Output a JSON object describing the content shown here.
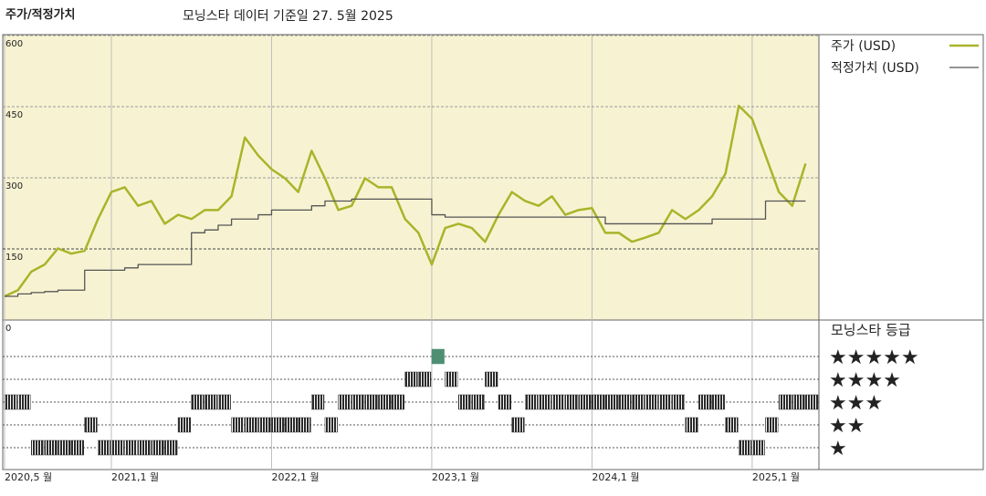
{
  "chart_data": [
    {
      "type": "line",
      "title": "주가/적정가치",
      "subtitle": "모닝스타 데이터 기준일 27. 5월 2025",
      "x": [
        "2020-05",
        "2020-06",
        "2020-07",
        "2020-08",
        "2020-09",
        "2020-10",
        "2020-11",
        "2020-12",
        "2021-01",
        "2021-02",
        "2021-03",
        "2021-04",
        "2021-05",
        "2021-06",
        "2021-07",
        "2021-08",
        "2021-09",
        "2021-10",
        "2021-11",
        "2021-12",
        "2022-01",
        "2022-02",
        "2022-03",
        "2022-04",
        "2022-05",
        "2022-06",
        "2022-07",
        "2022-08",
        "2022-09",
        "2022-10",
        "2022-11",
        "2022-12",
        "2023-01",
        "2023-02",
        "2023-03",
        "2023-04",
        "2023-05",
        "2023-06",
        "2023-07",
        "2023-08",
        "2023-09",
        "2023-10",
        "2023-11",
        "2023-12",
        "2024-01",
        "2024-02",
        "2024-03",
        "2024-04",
        "2024-05",
        "2024-06",
        "2024-07",
        "2024-08",
        "2024-09",
        "2024-10",
        "2024-11",
        "2024-12",
        "2025-01",
        "2025-02",
        "2025-03",
        "2025-04",
        "2025-05"
      ],
      "xlim": [
        "2020-05",
        "2025-06"
      ],
      "xticks": [
        {
          "value": "2020-05",
          "label": "2020,5 월"
        },
        {
          "value": "2021-01",
          "label": "2021,1 월"
        },
        {
          "value": "2022-01",
          "label": "2022,1 월"
        },
        {
          "value": "2023-01",
          "label": "2023,1 월"
        },
        {
          "value": "2024-01",
          "label": "2024,1 월"
        },
        {
          "value": "2025-01",
          "label": "2025,1 월"
        }
      ],
      "ylim": [
        0,
        600
      ],
      "yticks": [
        0,
        150,
        300,
        450,
        600
      ],
      "grid": true,
      "background": "#f7f3d2",
      "series": [
        {
          "name": "주가 (USD)",
          "color": "#a9b42a",
          "values": [
            50,
            63,
            102,
            117,
            151,
            140,
            146,
            213,
            270,
            280,
            241,
            251,
            203,
            222,
            213,
            232,
            232,
            261,
            385,
            347,
            318,
            299,
            270,
            357,
            299,
            232,
            241,
            299,
            280,
            280,
            213,
            184,
            117,
            194,
            203,
            194,
            165,
            222,
            270,
            251,
            241,
            261,
            222,
            232,
            236,
            184,
            184,
            165,
            174,
            184,
            232,
            213,
            232,
            261,
            309,
            452,
            424,
            347,
            270,
            241,
            330
          ]
        },
        {
          "name": "적정가치 (USD)",
          "color": "#555555",
          "step": true,
          "values": [
            50,
            55,
            58,
            60,
            63,
            63,
            105,
            105,
            105,
            110,
            117,
            117,
            117,
            117,
            184,
            190,
            200,
            213,
            213,
            222,
            232,
            232,
            232,
            241,
            251,
            251,
            255,
            255,
            255,
            255,
            255,
            255,
            222,
            217,
            217,
            217,
            217,
            217,
            217,
            217,
            217,
            217,
            217,
            217,
            217,
            203,
            203,
            203,
            203,
            203,
            203,
            203,
            203,
            213,
            213,
            213,
            213,
            251,
            251,
            251,
            251
          ]
        }
      ]
    },
    {
      "type": "rating",
      "title": "모닝스타 등급",
      "ylim": [
        1,
        5
      ],
      "yticks": [
        {
          "value": 1,
          "label": "★"
        },
        {
          "value": 2,
          "label": "★★"
        },
        {
          "value": 3,
          "label": "★★★"
        },
        {
          "value": 4,
          "label": "★★★★"
        },
        {
          "value": 5,
          "label": "★★★★★"
        }
      ],
      "level_colors": [
        "#2a2a2a",
        "#2a2a2a",
        "#2a2a2a",
        "#2a2a2a",
        "#4e8f74"
      ],
      "values": [
        3,
        3,
        1,
        1,
        1,
        1,
        2,
        1,
        1,
        1,
        1,
        1,
        1,
        2,
        3,
        3,
        3,
        2,
        2,
        2,
        2,
        2,
        2,
        3,
        2,
        3,
        3,
        3,
        3,
        3,
        4,
        4,
        5,
        4,
        3,
        3,
        4,
        3,
        2,
        3,
        3,
        3,
        3,
        3,
        3,
        3,
        3,
        3,
        3,
        3,
        3,
        2,
        3,
        3,
        2,
        1,
        1,
        2,
        3,
        3,
        3
      ]
    }
  ]
}
